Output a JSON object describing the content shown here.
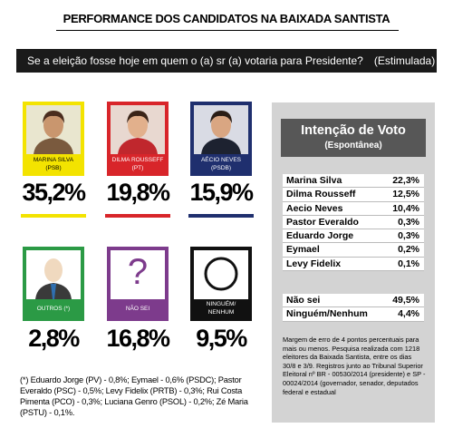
{
  "header": {
    "title": "PERFORMANCE DOS CANDIDATOS NA BAIXADA SANTISTA",
    "question": "Se a eleição fosse hoje em quem o (a) sr (a) votaria para Presidente?",
    "question_type": "(Estimulada)"
  },
  "candidates": [
    {
      "name": "MARINA SILVA",
      "party": "(PSB)",
      "percent": "35,2%"
    },
    {
      "name": "DILMA ROUSSEFF",
      "party": "(PT)",
      "percent": "19,8%"
    },
    {
      "name": "AÉCIO NEVES",
      "party": "(PSDB)",
      "percent": "15,9%"
    }
  ],
  "others": [
    {
      "label": [
        "OUTROS (*)"
      ],
      "percent": "2,8%"
    },
    {
      "icon": "?",
      "label": [
        "NÃO SEI"
      ],
      "percent": "16,8%"
    },
    {
      "label": [
        "NINGUÉM/",
        "NENHUM"
      ],
      "percent": "9,5%"
    }
  ],
  "footnote": "(*) Eduardo Jorge (PV) - 0,8%; Eymael - 0,6% (PSDC); Pastor Everaldo (PSC) - 0,5%; Levy Fidelix (PRTB) - 0,3%; Rui Costa Pimenta (PCO) - 0,3%; Luciana Genro (PSOL) - 0,2%; Zé Maria (PSTU) - 0,1%.",
  "panel": {
    "title": "Intenção de Voto",
    "subtitle": "(Espontânea)",
    "rows": [
      [
        "Marina Silva",
        "22,3%"
      ],
      [
        "Dilma Rousseff",
        "12,5%"
      ],
      [
        "Aecio Neves",
        "10,4%"
      ],
      [
        "Pastor Everaldo",
        "0,3%"
      ],
      [
        "Eduardo Jorge",
        "0,3%"
      ],
      [
        "Eymael",
        "0,2%"
      ],
      [
        "Levy Fidelix",
        "0,1%"
      ]
    ],
    "rows2": [
      [
        "Não sei",
        "49,5%"
      ],
      [
        "Ninguém/Nenhum",
        "4,4%"
      ]
    ],
    "note": "Margem de erro de 4 pontos percentuais para mais ou menos. Pesquisa realizada com 1218 eleitores da Baixada Santista, entre os dias 30/8 e 3/9. Registros junto ao Tribunal Superior Eleitoral nº BR - 00530/2014 (presidente) e SP - 00024/2014 (governador, senador, deputados federal e estadual"
  }
}
